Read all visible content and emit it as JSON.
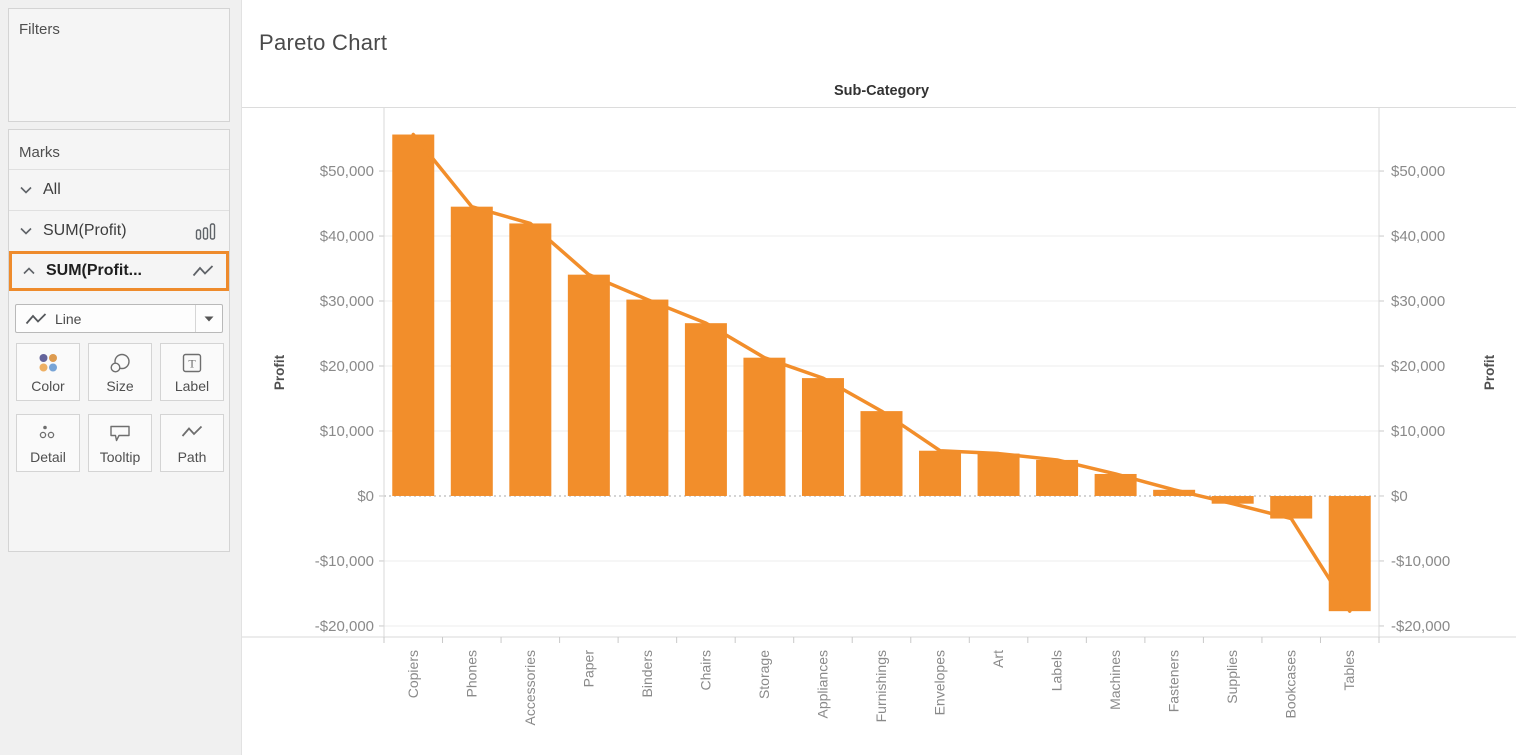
{
  "sidebar": {
    "filters": {
      "title": "Filters"
    },
    "marks": {
      "title": "Marks",
      "rows": [
        {
          "label": "All",
          "state": "collapsed",
          "chevron": "chevron-down-icon"
        },
        {
          "label": "SUM(Profit)",
          "state": "collapsed",
          "chevron": "chevron-down-icon",
          "mark_icon": "bar-marks-icon"
        },
        {
          "label": "SUM(Profit...",
          "state": "expanded",
          "chevron": "chevron-up-icon",
          "mark_icon": "line-marks-icon",
          "selected": true
        }
      ],
      "mark_type": {
        "value": "Line",
        "icon": "line-marks-icon"
      },
      "buttons": [
        {
          "label": "Color",
          "icon": "color-dots-icon"
        },
        {
          "label": "Size",
          "icon": "size-circles-icon"
        },
        {
          "label": "Label",
          "icon": "text-label-icon"
        },
        {
          "label": "Detail",
          "icon": "detail-dots-icon"
        },
        {
          "label": "Tooltip",
          "icon": "tooltip-bubble-icon"
        },
        {
          "label": "Path",
          "icon": "path-line-icon"
        }
      ]
    }
  },
  "chart": {
    "title": "Pareto Chart",
    "column_header": "Sub-Category",
    "axis_left_title": "Profit",
    "axis_right_title": "Profit"
  },
  "colors": {
    "accent_orange": "#F28E2B",
    "selection_border": "#EE8B2C",
    "axis_text": "#8a8a8a",
    "grid": "#ececec"
  },
  "chart_data": {
    "type": "bar",
    "overlay": "line",
    "title": "Pareto Chart",
    "column_header": "Sub-Category",
    "xlabel": "Sub-Category",
    "ylabel_left": "Profit",
    "ylabel_right": "Profit",
    "categories": [
      "Copiers",
      "Phones",
      "Accessories",
      "Paper",
      "Binders",
      "Chairs",
      "Storage",
      "Appliances",
      "Furnishings",
      "Envelopes",
      "Art",
      "Labels",
      "Machines",
      "Fasteners",
      "Supplies",
      "Bookcases",
      "Tables"
    ],
    "values": [
      55618,
      44516,
      41937,
      34054,
      30222,
      26590,
      21279,
      18138,
      13059,
      6964,
      6528,
      5546,
      3385,
      950,
      -1189,
      -3473,
      -17725
    ],
    "ylim": [
      -21700,
      59700
    ],
    "y_ticks": [
      {
        "value": 50000,
        "label": "$50,000"
      },
      {
        "value": 40000,
        "label": "$40,000"
      },
      {
        "value": 30000,
        "label": "$30,000"
      },
      {
        "value": 20000,
        "label": "$20,000"
      },
      {
        "value": 10000,
        "label": "$10,000"
      },
      {
        "value": 0,
        "label": "$0"
      },
      {
        "value": -10000,
        "label": "-$10,000"
      },
      {
        "value": -20000,
        "label": "-$20,000"
      }
    ],
    "grid": true,
    "zero_line": "dotted",
    "legend": "none",
    "bar_color": "#F28E2B",
    "line_color": "#F28E2B"
  }
}
